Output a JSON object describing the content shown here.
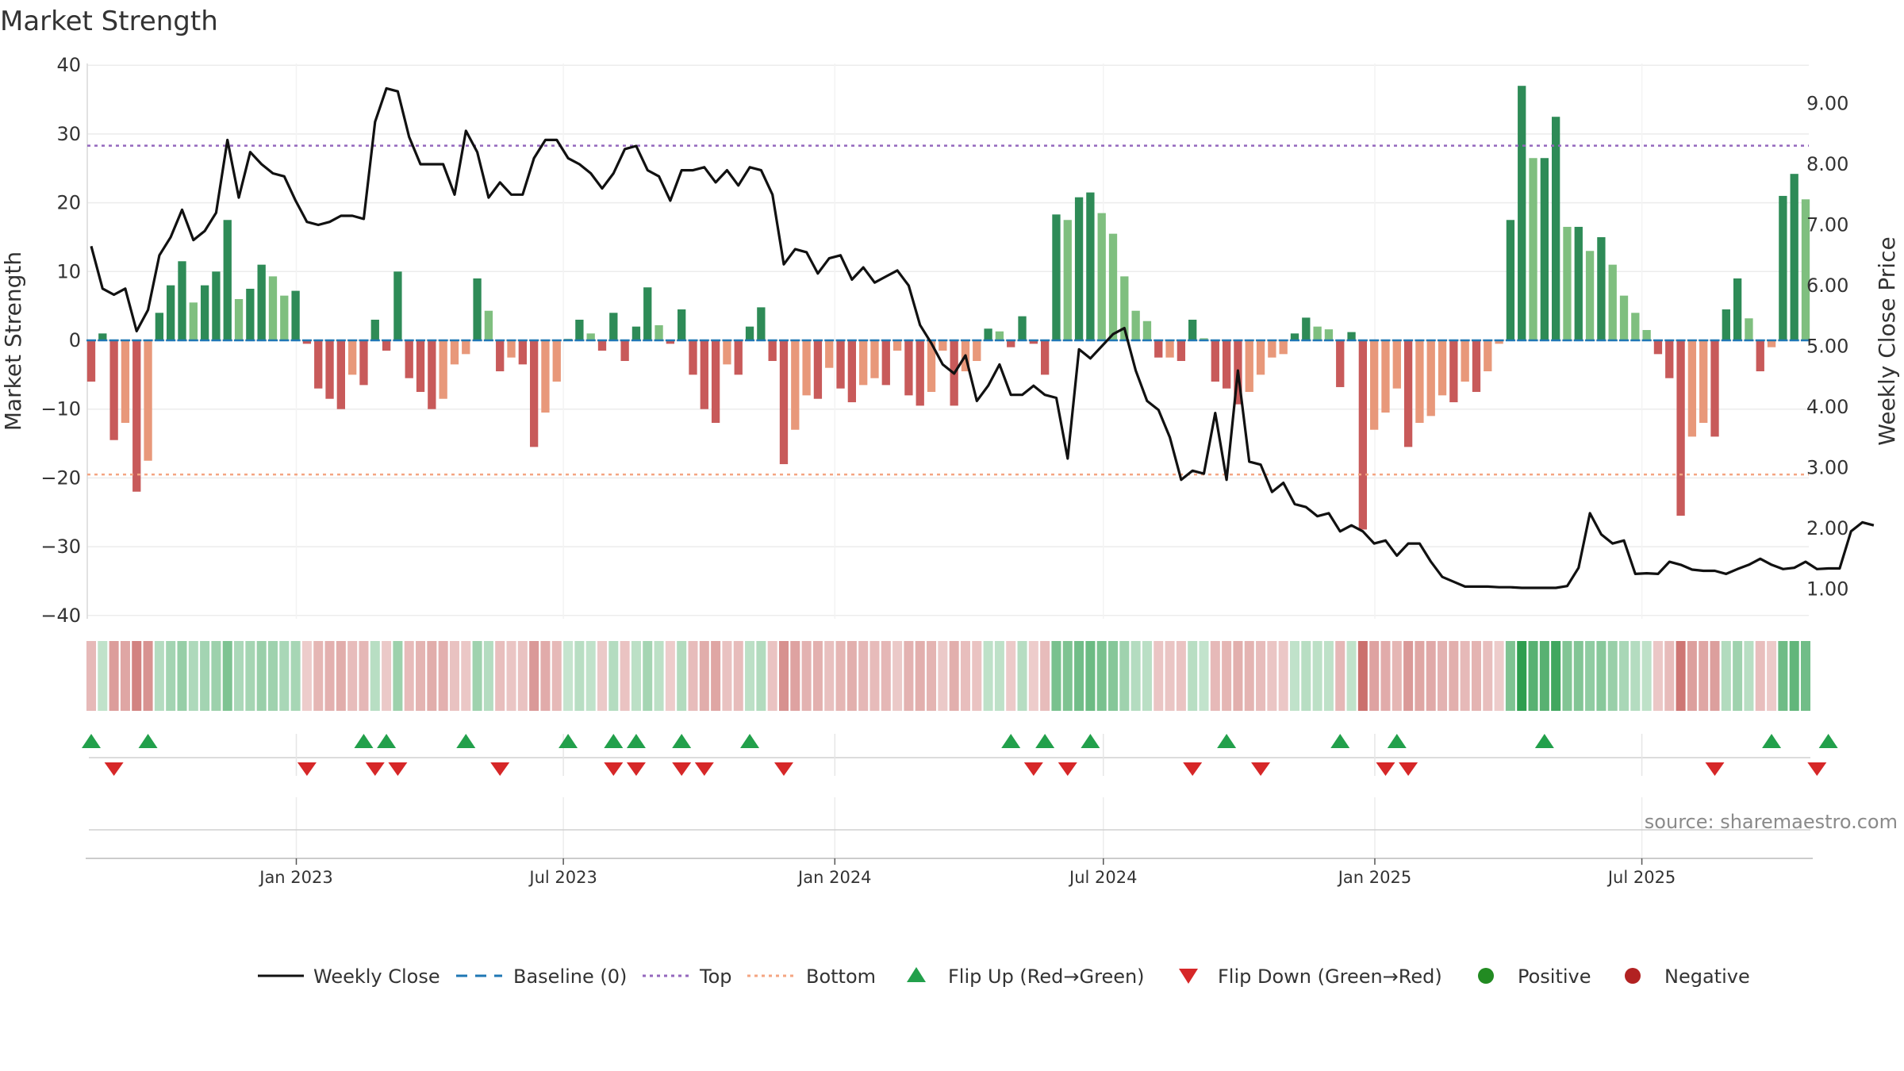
{
  "chart_data": {
    "type": "bar",
    "title": "Market Strength",
    "ylabel_left": "Market Strength",
    "ylabel_right": "Weekly Close Price",
    "ylim_left": [
      -40,
      40
    ],
    "ylim_right": [
      0,
      9.6
    ],
    "left_ticks": [
      "40",
      "30",
      "20",
      "10",
      "0",
      "−10",
      "−20",
      "−30",
      "−40"
    ],
    "right_ticks": [
      "9.00",
      "8.00",
      "7.00",
      "6.00",
      "5.00",
      "4.00",
      "3.00",
      "2.00",
      "1.00"
    ],
    "date_ticks": [
      "Jan 2023",
      "Jul 2023",
      "Jan 2024",
      "Jul 2024",
      "Jan 2025",
      "Jul 2025"
    ],
    "x_range": [
      "2022-08-15",
      "2025-10-20"
    ],
    "top_level": 28.3,
    "bottom_level": -19.5,
    "strength": [
      -6,
      1,
      -14.5,
      -12,
      -22,
      -17.5,
      4,
      8,
      11.5,
      5.5,
      8,
      10,
      17.5,
      6,
      7.5,
      11,
      9.3,
      6.5,
      7.2,
      -0.5,
      -7,
      -8.5,
      -10,
      -5,
      -6.5,
      3,
      -1.5,
      10,
      -5.5,
      -7.5,
      -10,
      -8.5,
      -3.5,
      -2,
      9,
      4.3,
      -4.5,
      -2.5,
      -3.5,
      -15.5,
      -10.5,
      -6,
      0.2,
      3,
      1,
      -1.5,
      4,
      -3,
      2,
      7.7,
      2.2,
      -0.5,
      4.5,
      -5,
      -10,
      -12,
      -3.5,
      -5,
      2,
      4.8,
      -3,
      -18,
      -13,
      -8,
      -8.5,
      -4,
      -7,
      -9,
      -6.5,
      -5.5,
      -6.5,
      -1.5,
      -8,
      -9.5,
      -7.5,
      -1.5,
      -9.5,
      -4.5,
      -3,
      1.7,
      1.3,
      -1,
      3.5,
      -0.5,
      -5,
      18.3,
      17.5,
      20.8,
      21.5,
      18.5,
      15.5,
      9.3,
      4.3,
      2.8,
      -2.5,
      -2.5,
      -3,
      3,
      0.3,
      -6,
      -7,
      -9.3,
      -7.5,
      -5,
      -2.5,
      -2,
      1,
      3.3,
      2,
      1.6,
      -6.8,
      1.2,
      -27.5,
      -13,
      -10.5,
      -7,
      -15.5,
      -12,
      -11,
      -8,
      -9,
      -6,
      -7.5,
      -4.5,
      -0.5,
      17.5,
      37,
      26.5,
      26.5,
      32.5,
      16.5,
      16.5,
      13,
      15,
      11,
      6.5,
      4,
      1.5,
      -2,
      -5.5,
      -25.5,
      -14,
      -12,
      -14,
      4.5,
      9,
      3.2,
      -4.5,
      -1,
      21,
      24.2,
      20.5
    ],
    "weekly_close": [
      6.65,
      5.95,
      5.85,
      5.95,
      5.25,
      5.6,
      6.5,
      6.8,
      7.25,
      6.75,
      6.9,
      7.2,
      8.4,
      7.45,
      8.2,
      8.0,
      7.85,
      7.8,
      7.4,
      7.05,
      7.0,
      7.05,
      7.15,
      7.15,
      7.1,
      8.7,
      9.25,
      9.2,
      8.45,
      8.0,
      8.0,
      8.0,
      7.5,
      8.55,
      8.2,
      7.45,
      7.7,
      7.5,
      7.5,
      8.1,
      8.4,
      8.4,
      8.1,
      8.0,
      7.85,
      7.6,
      7.85,
      8.25,
      8.3,
      7.9,
      7.8,
      7.4,
      7.9,
      7.9,
      7.95,
      7.7,
      7.9,
      7.65,
      7.95,
      7.9,
      7.5,
      6.35,
      6.6,
      6.55,
      6.2,
      6.45,
      6.5,
      6.1,
      6.3,
      6.05,
      6.15,
      6.25,
      6.0,
      5.35,
      5.05,
      4.7,
      4.55,
      4.85,
      4.1,
      4.35,
      4.7,
      4.2,
      4.2,
      4.35,
      4.2,
      4.15,
      3.15,
      4.95,
      4.8,
      5.0,
      5.2,
      5.3,
      4.6,
      4.1,
      3.95,
      3.5,
      2.8,
      2.95,
      2.9,
      3.9,
      2.8,
      4.6,
      3.1,
      3.05,
      2.6,
      2.75,
      2.4,
      2.35,
      2.2,
      2.25,
      1.95,
      2.05,
      1.95,
      1.75,
      1.8,
      1.55,
      1.75,
      1.75,
      1.45,
      1.2,
      1.12,
      1.04,
      1.04,
      1.04,
      1.03,
      1.03,
      1.02,
      1.02,
      1.02,
      1.02,
      1.05,
      1.35,
      2.25,
      1.9,
      1.75,
      1.8,
      1.25,
      1.26,
      1.25,
      1.45,
      1.4,
      1.32,
      1.3,
      1.3,
      1.25,
      1.33,
      1.4,
      1.5,
      1.4,
      1.33,
      1.35,
      1.45,
      1.33,
      1.34,
      1.34,
      1.95,
      2.1,
      2.05
    ],
    "flip_up_weeks": [
      0,
      5,
      24,
      26,
      33,
      42,
      46,
      48,
      52,
      58,
      81,
      84,
      88,
      100,
      110,
      115,
      128,
      148,
      153
    ],
    "flip_down_weeks": [
      2,
      19,
      25,
      27,
      36,
      46,
      48,
      52,
      54,
      61,
      83,
      86,
      97,
      103,
      114,
      116,
      143,
      152
    ],
    "legend": [
      "Weekly Close",
      "Baseline (0)",
      "Top",
      "Bottom",
      "Flip Up (Red→Green)",
      "Flip Down (Green→Red)",
      "Positive",
      "Negative"
    ],
    "grid": true,
    "legend_position": "bottom-center"
  },
  "source_text": "source: sharemaestro.com",
  "colors": {
    "pos_strong": "#2e8b57",
    "pos_light": "#7fbf7f",
    "neg_strong": "#c85a5a",
    "neg_light": "#e8987a",
    "line": "#111111",
    "baseline": "#1f77b4",
    "top": "#9467bd",
    "bottom": "#f4a582",
    "flip_up": "#22a04b",
    "flip_down": "#d62728",
    "positive_dot": "#228b22",
    "negative_dot": "#b22222"
  }
}
